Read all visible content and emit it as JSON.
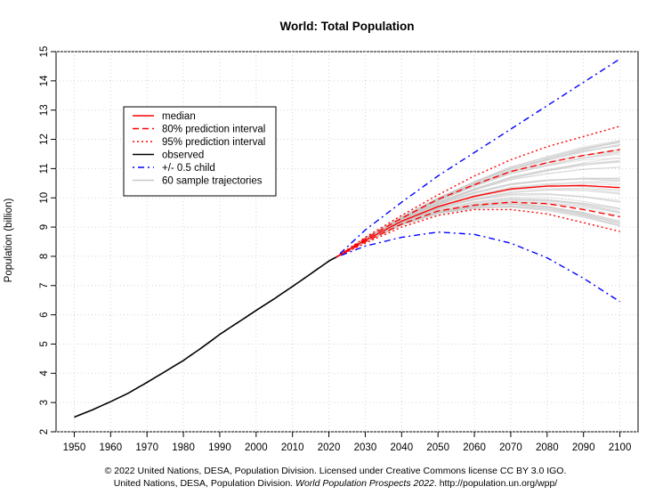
{
  "chart_data": {
    "type": "line",
    "title": "World: Total Population",
    "xlabel": "",
    "ylabel": "Population (billion)",
    "xlim": [
      1945,
      2105
    ],
    "ylim": [
      2,
      15
    ],
    "x_ticks": [
      1950,
      1960,
      1970,
      1980,
      1990,
      2000,
      2010,
      2020,
      2030,
      2040,
      2050,
      2060,
      2070,
      2080,
      2090,
      2100
    ],
    "y_ticks": [
      2,
      3,
      4,
      5,
      6,
      7,
      8,
      9,
      10,
      11,
      12,
      13,
      14,
      15
    ],
    "grid": true,
    "legend_position": "top-left",
    "legend": [
      {
        "label": "median",
        "color": "#ff0000",
        "dash": "solid"
      },
      {
        "label": "80% prediction interval",
        "color": "#ff0000",
        "dash": "dashed"
      },
      {
        "label": "95% prediction interval",
        "color": "#ff0000",
        "dash": "dotted"
      },
      {
        "label": "observed",
        "color": "#000000",
        "dash": "solid"
      },
      {
        "label": "+/- 0.5 child",
        "color": "#0000ff",
        "dash": "dotdash"
      },
      {
        "label": "60 sample trajectories",
        "color": "#c8c8c8",
        "dash": "solid"
      }
    ],
    "series": [
      {
        "name": "observed",
        "color": "#000000",
        "dash": "solid",
        "x": [
          1950,
          1955,
          1960,
          1965,
          1970,
          1975,
          1980,
          1985,
          1990,
          1995,
          2000,
          2005,
          2010,
          2015,
          2020,
          2022
        ],
        "y": [
          2.5,
          2.75,
          3.03,
          3.33,
          3.69,
          4.06,
          4.44,
          4.87,
          5.33,
          5.74,
          6.15,
          6.55,
          6.97,
          7.4,
          7.84,
          7.97
        ]
      },
      {
        "name": "median",
        "color": "#ff0000",
        "dash": "solid",
        "x": [
          2022,
          2030,
          2040,
          2050,
          2060,
          2070,
          2080,
          2090,
          2100
        ],
        "y": [
          7.97,
          8.55,
          9.2,
          9.7,
          10.05,
          10.3,
          10.4,
          10.42,
          10.35
        ]
      },
      {
        "name": "80% prediction interval (upper)",
        "color": "#ff0000",
        "dash": "dashed",
        "x": [
          2022,
          2030,
          2040,
          2050,
          2060,
          2070,
          2080,
          2090,
          2100
        ],
        "y": [
          7.97,
          8.6,
          9.3,
          9.95,
          10.45,
          10.9,
          11.2,
          11.45,
          11.65
        ]
      },
      {
        "name": "80% prediction interval (lower)",
        "color": "#ff0000",
        "dash": "dashed",
        "x": [
          2022,
          2030,
          2040,
          2050,
          2060,
          2070,
          2080,
          2090,
          2100
        ],
        "y": [
          7.97,
          8.5,
          9.1,
          9.55,
          9.75,
          9.85,
          9.8,
          9.6,
          9.35
        ]
      },
      {
        "name": "95% prediction interval (upper)",
        "color": "#ff0000",
        "dash": "dotted",
        "x": [
          2022,
          2030,
          2040,
          2050,
          2060,
          2070,
          2080,
          2090,
          2100
        ],
        "y": [
          7.97,
          8.65,
          9.4,
          10.1,
          10.75,
          11.3,
          11.75,
          12.1,
          12.45
        ]
      },
      {
        "name": "95% prediction interval (lower)",
        "color": "#ff0000",
        "dash": "dotted",
        "x": [
          2022,
          2030,
          2040,
          2050,
          2060,
          2070,
          2080,
          2090,
          2100
        ],
        "y": [
          7.97,
          8.45,
          9.0,
          9.4,
          9.6,
          9.6,
          9.45,
          9.15,
          8.85
        ]
      },
      {
        "name": "+/- 0.5 child (upper)",
        "color": "#0000ff",
        "dash": "dotdash",
        "x": [
          2022,
          2030,
          2040,
          2050,
          2060,
          2070,
          2080,
          2090,
          2100
        ],
        "y": [
          7.97,
          8.9,
          9.85,
          10.75,
          11.55,
          12.35,
          13.15,
          13.95,
          14.75
        ]
      },
      {
        "name": "+/- 0.5 child (lower)",
        "color": "#0000ff",
        "dash": "dotdash",
        "x": [
          2022,
          2030,
          2040,
          2050,
          2060,
          2070,
          2080,
          2090,
          2100
        ],
        "y": [
          7.97,
          8.35,
          8.65,
          8.83,
          8.75,
          8.45,
          7.95,
          7.25,
          6.45
        ]
      }
    ],
    "sample_trajectories": {
      "color": "#c8c8c8",
      "x": [
        2022,
        2030,
        2040,
        2050,
        2060,
        2070,
        2080,
        2090,
        2100
      ],
      "y_2100_range": [
        9.3,
        12.0
      ]
    }
  },
  "footer": {
    "line1": "© 2022 United Nations, DESA, Population Division. Licensed under Creative Commons license CC BY 3.0 IGO.",
    "line2_prefix": "United Nations, DESA, Population Division. ",
    "line2_italic": "World Population Prospects 2022",
    "line2_suffix": ". http://population.un.org/wpp/"
  }
}
